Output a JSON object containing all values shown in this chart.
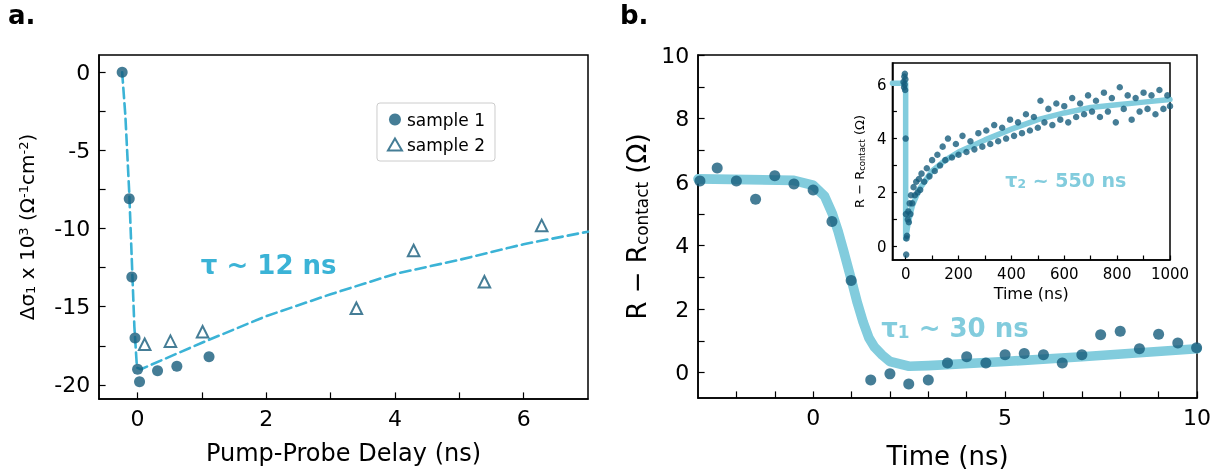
{
  "chart_data": [
    {
      "type": "scatter",
      "xlabel": "Pump-Probe Delay (ns)",
      "ylabel": "Δσ$_{1}$ x 10$^{3}$ (Ω$^{-1}$cm$^{-2}$)",
      "legend": "top right",
      "xlim": [
        -0.6,
        7
      ],
      "xticks": [
        0,
        {
          "value": 1,
          "label": null
        },
        2,
        {
          "value": 3,
          "label": null
        },
        4,
        {
          "value": 5,
          "label": null
        },
        6
      ],
      "ylim": [
        -20.9,
        1.1
      ],
      "yticks": [
        0,
        {
          "value": -2.5,
          "label": null
        },
        -5,
        {
          "value": -7.5,
          "label": null
        },
        -10,
        {
          "value": -12.5,
          "label": null
        },
        -15,
        {
          "value": -17.5,
          "label": null
        },
        -20
      ],
      "annotations": [
        "a.",
        "τ ~ 12 ns"
      ],
      "series": [
        {
          "name": "sample 1",
          "marker": "circle",
          "color": "#175d7c",
          "x": [
            -0.24,
            -0.13,
            -0.09,
            -0.04,
            0,
            0.03,
            0.31,
            0.61,
            1.11
          ],
          "values": [
            0,
            -8.1,
            -13.1,
            -17,
            -19,
            -19.8,
            -19.1,
            -18.8,
            -18.2
          ]
        },
        {
          "name": "sample 2",
          "marker": "triangle",
          "color": "#175d7c",
          "x": [
            0.11,
            0.51,
            1.01,
            3.4,
            4.29,
            5.39,
            6.28
          ],
          "values": [
            -17.4,
            -17.2,
            -16.6,
            -15.1,
            -11.4,
            -13.4,
            -9.8
          ]
        },
        {
          "type": "line",
          "marker": "none",
          "line_style": "dashed",
          "color": "#3bb3d6",
          "x": [
            -0.24,
            -0.19,
            -0.13,
            -0.08,
            -0.05,
            -0.01,
            0.05,
            1,
            2,
            3,
            4,
            5,
            6,
            7
          ],
          "values": [
            0,
            -2.8,
            -7.7,
            -13.1,
            -16.3,
            -18.9,
            -19,
            -17.3,
            -15.6,
            -14.2,
            -12.9,
            -12,
            -11,
            -10.2
          ]
        }
      ]
    },
    {
      "type": "scatter",
      "xlabel": "Time (ns)",
      "ylabel": "R − R$_{contact}$ (Ω)",
      "xlim": [
        -3,
        10
      ],
      "xticks": [
        {
          "value": -2,
          "label": null
        },
        {
          "value": -1,
          "label": null
        },
        0,
        {
          "value": 1,
          "label": null
        },
        {
          "value": 2,
          "label": null
        },
        {
          "value": 3,
          "label": null
        },
        {
          "value": 4,
          "label": null
        },
        5,
        {
          "value": 6,
          "label": null
        },
        {
          "value": 7,
          "label": null
        },
        {
          "value": 8,
          "label": null
        },
        {
          "value": 9,
          "label": null
        },
        10
      ],
      "ylim": [
        -0.8,
        10
      ],
      "yticks": [
        0,
        {
          "value": 1,
          "label": null
        },
        2,
        {
          "value": 3,
          "label": null
        },
        4,
        {
          "value": 5,
          "label": null
        },
        6,
        {
          "value": 7,
          "label": null
        },
        8,
        {
          "value": 9,
          "label": null
        },
        10
      ],
      "annotations": [
        "b.",
        "τ$_{1}$ ~ 30 ns"
      ],
      "series": [
        {
          "type": "line",
          "marker": "none",
          "line_style": "solid",
          "color": "#82ccdd",
          "x": [
            -3,
            -0.5,
            0,
            0.3,
            0.5,
            0.65,
            0.8,
            1,
            1.15,
            1.3,
            1.45,
            1.6,
            1.8,
            2,
            2.5,
            3,
            5,
            7,
            10
          ],
          "values": [
            6.1,
            6.05,
            5.9,
            5.55,
            5,
            4.45,
            3.8,
            2.9,
            2.2,
            1.6,
            1.1,
            0.8,
            0.55,
            0.35,
            0.2,
            0.22,
            0.35,
            0.5,
            0.75
          ]
        },
        {
          "marker": "circle",
          "color": "#175d7c",
          "x": [
            -2.95,
            -2.5,
            -2,
            -1.5,
            -1,
            -0.5,
            0,
            0.49,
            0.99,
            1.5,
            2,
            2.49,
            3,
            3.5,
            4,
            4.5,
            5,
            5.5,
            6,
            6.49,
            7,
            7.49,
            8,
            8.5,
            9,
            9.5,
            9.99
          ],
          "values": [
            6.03,
            6.44,
            6.03,
            5.46,
            6.2,
            5.94,
            5.75,
            4.76,
            2.9,
            -0.23,
            -0.04,
            -0.36,
            -0.23,
            0.3,
            0.5,
            0.3,
            0.56,
            0.6,
            0.56,
            0.3,
            0.56,
            1.19,
            1.3,
            0.75,
            1.21,
            0.93,
            0.78
          ]
        }
      ]
    },
    {
      "type": "scatter",
      "xlabel": "Time (ns)",
      "ylabel": "R − R$_{contact}$ (Ω)",
      "xlim": [
        -50,
        1000
      ],
      "xticks": [
        0,
        {
          "value": 100,
          "label": null
        },
        200,
        {
          "value": 300,
          "label": null
        },
        400,
        {
          "value": 500,
          "label": null
        },
        600,
        {
          "value": 700,
          "label": null
        },
        800,
        {
          "value": 900,
          "label": null
        },
        1000
      ],
      "ylim": [
        -0.5,
        6.8
      ],
      "yticks": [
        0,
        {
          "value": 1,
          "label": null
        },
        2,
        {
          "value": 3,
          "label": null
        },
        4,
        {
          "value": 5,
          "label": null
        },
        6
      ],
      "annotations": [
        "τ$_{2}$ ~ 550 ns"
      ],
      "series": [
        {
          "type": "line",
          "marker": "none",
          "line_style": "solid",
          "color": "#82ccdd",
          "x": [
            -50,
            0,
            0,
            10,
            25,
            50,
            100,
            150,
            200,
            300,
            400,
            500,
            600,
            700,
            800,
            900,
            1000
          ],
          "values": [
            6.05,
            6.05,
            0.3,
            0.9,
            1.5,
            2.1,
            2.8,
            3.2,
            3.5,
            3.95,
            4.35,
            4.7,
            4.95,
            5.15,
            5.25,
            5.35,
            5.45
          ]
        },
        {
          "marker": "circle",
          "color": "#175d7c",
          "x": [
            -8,
            -6,
            -5,
            -4,
            -3,
            -2,
            -1,
            0,
            1,
            2,
            3,
            5,
            8,
            10,
            12,
            15,
            18,
            20,
            25,
            30,
            35,
            40,
            45,
            50,
            55,
            60,
            70,
            80,
            90,
            100,
            110,
            120,
            130,
            140,
            150,
            160,
            175,
            190,
            200,
            215,
            230,
            245,
            260,
            275,
            290,
            305,
            320,
            335,
            350,
            365,
            380,
            395,
            410,
            425,
            440,
            455,
            470,
            485,
            500,
            510,
            525,
            540,
            555,
            570,
            585,
            600,
            615,
            630,
            645,
            660,
            675,
            690,
            705,
            720,
            735,
            750,
            765,
            780,
            795,
            810,
            825,
            840,
            855,
            870,
            885,
            900,
            915,
            930,
            945,
            960,
            975,
            990,
            1000
          ],
          "values": [
            6.1,
            5.9,
            6.3,
            6,
            6.4,
            5.8,
            6.2,
            4,
            1.2,
            -0.3,
            0.3,
            0.4,
            1,
            1.3,
            0.9,
            1.6,
            1.2,
            1.9,
            1.6,
            2.2,
            1.9,
            2.4,
            2,
            2.5,
            2.1,
            2.7,
            2.4,
            2.9,
            2.6,
            3.2,
            2.8,
            3.4,
            3,
            3.7,
            3.2,
            4,
            3.3,
            3.8,
            3.4,
            4.1,
            3.5,
            3.9,
            3.6,
            4.2,
            3.7,
            4.3,
            3.8,
            4.5,
            3.9,
            4.4,
            4,
            4.7,
            4.1,
            4.6,
            4.2,
            4.9,
            4.3,
            4.8,
            4.4,
            5.4,
            4.6,
            5.1,
            4.5,
            5.3,
            4.7,
            5.2,
            4.6,
            5.5,
            4.8,
            5.3,
            4.9,
            5.6,
            5,
            5.4,
            4.8,
            5.7,
            5,
            5.5,
            4.6,
            5.9,
            5.1,
            5.6,
            4.7,
            5.5,
            5,
            5.7,
            5.1,
            5.6,
            4.9,
            5.8,
            5.1,
            5.6,
            5.2
          ]
        }
      ]
    }
  ]
}
